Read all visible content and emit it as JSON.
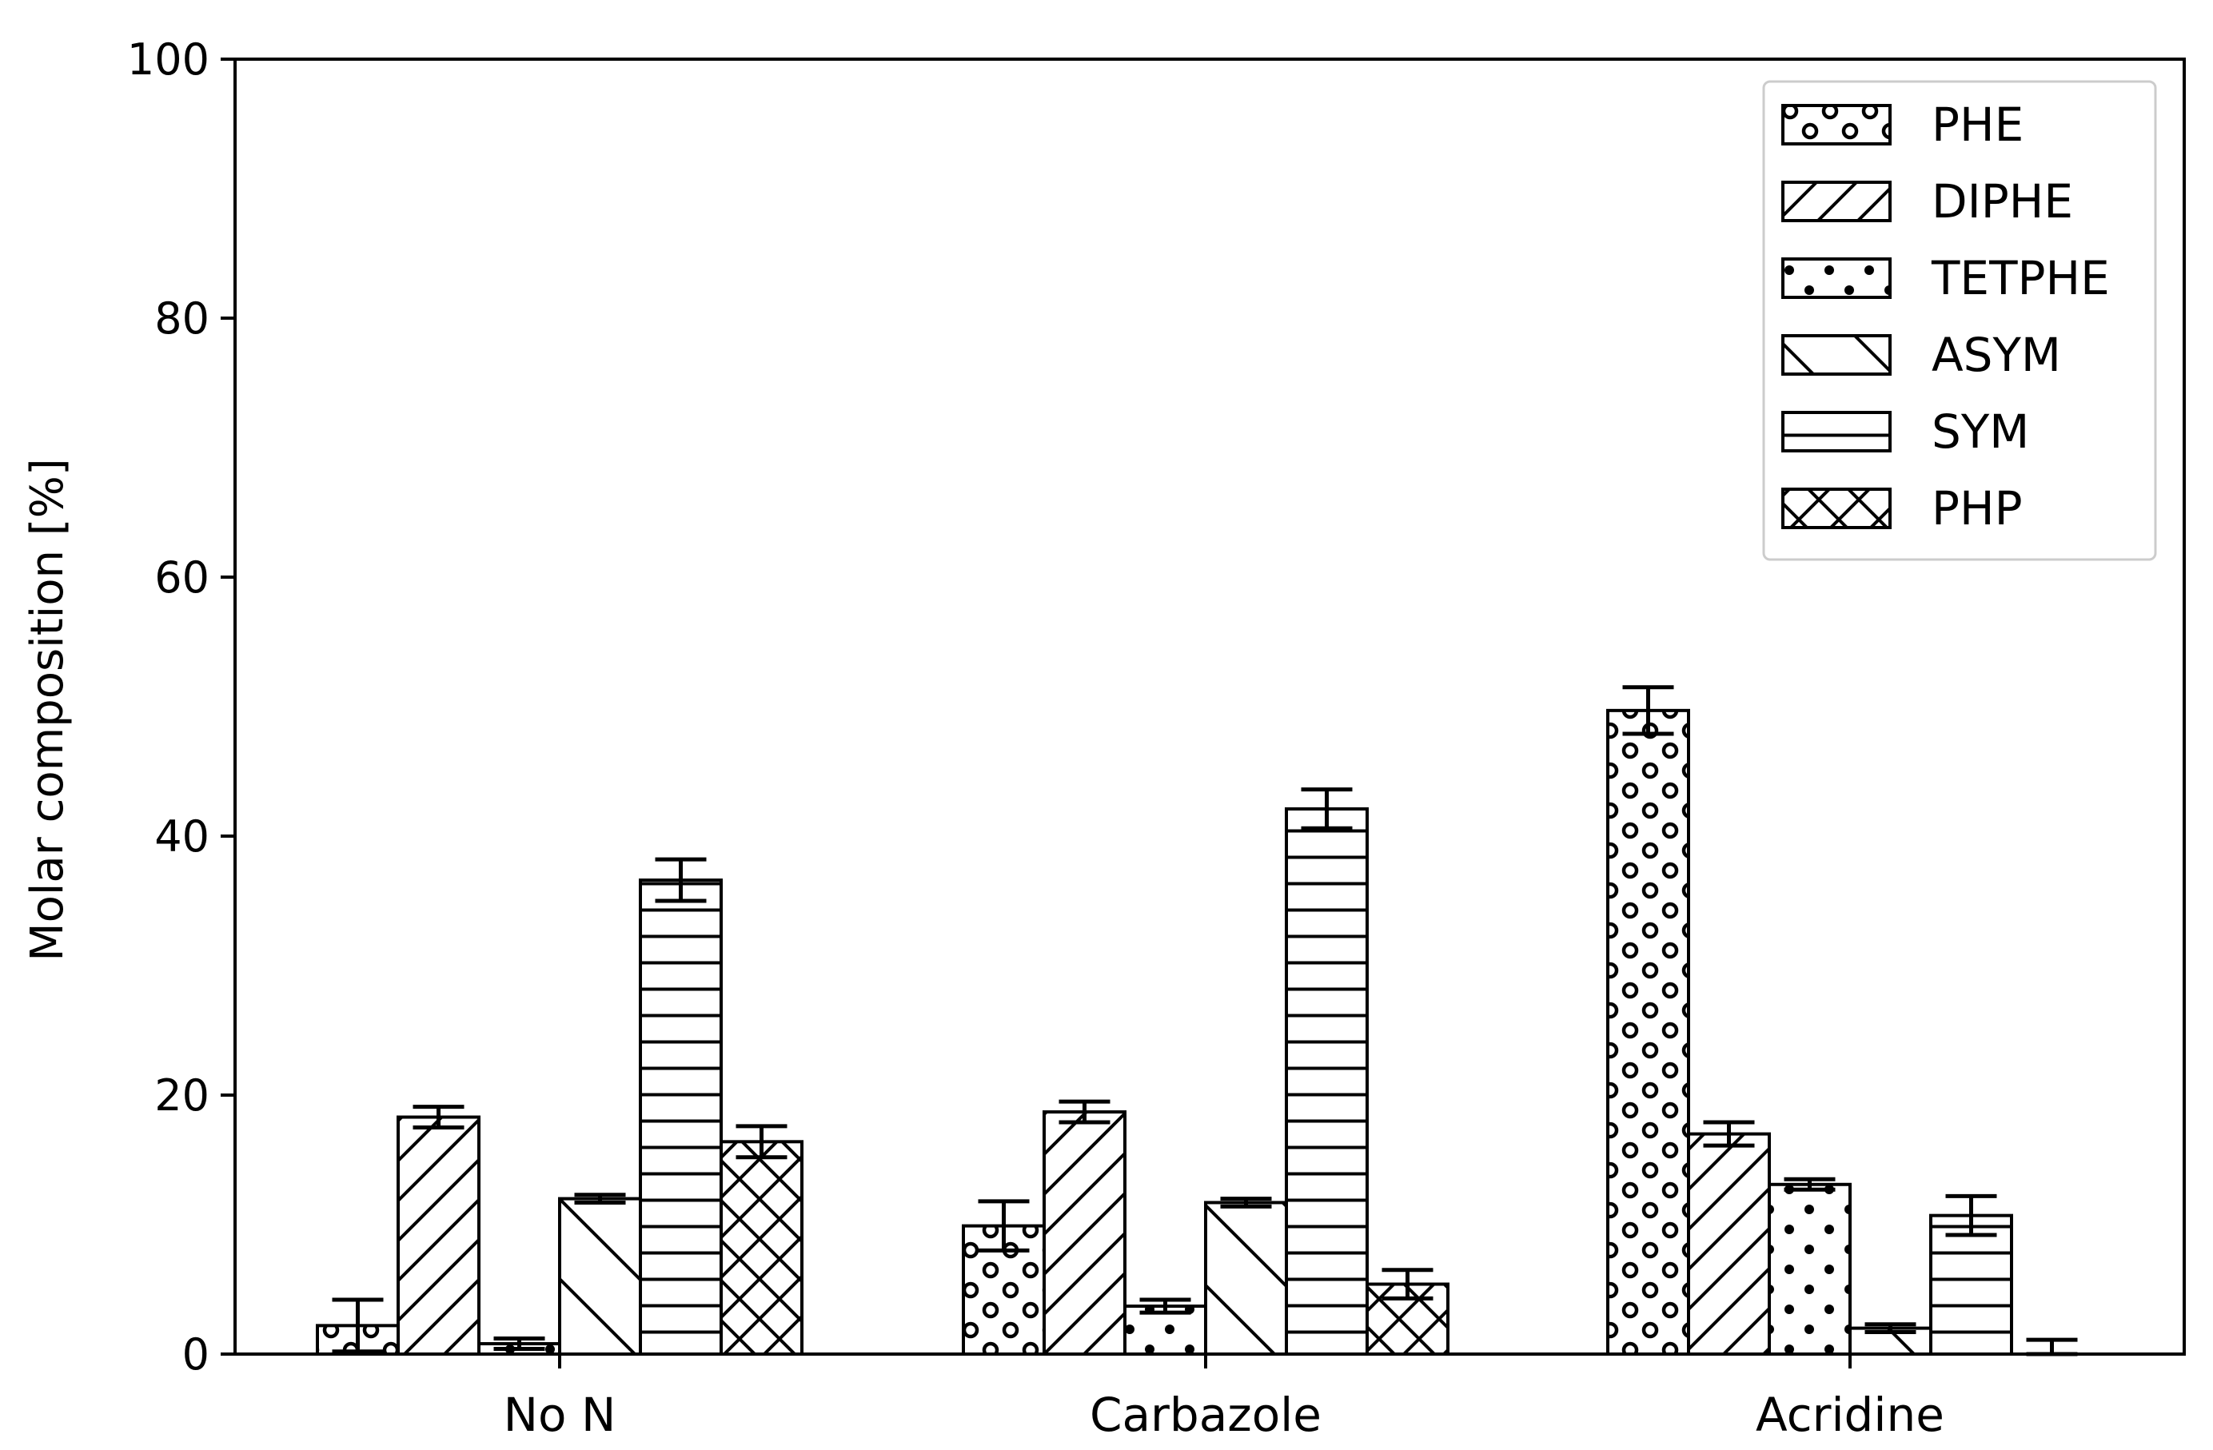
{
  "chart_data": {
    "type": "bar",
    "categories": [
      "No N",
      "Carbazole",
      "Acridine"
    ],
    "ylabel": "Molar composition [%]",
    "xlabel": "",
    "ylim": [
      0,
      100
    ],
    "yticks": [
      0,
      20,
      40,
      60,
      80,
      100
    ],
    "grid": false,
    "legend_position": "top-right",
    "error_bars": true,
    "series": [
      {
        "name": "PHE",
        "pattern": "large-circles",
        "values": [
          2.2,
          9.9,
          49.7
        ],
        "errors": [
          2.0,
          1.9,
          1.8
        ]
      },
      {
        "name": "DIPHE",
        "pattern": "forward-diagonal",
        "values": [
          18.3,
          18.7,
          17.0
        ],
        "errors": [
          0.8,
          0.8,
          0.9
        ]
      },
      {
        "name": "TETPHE",
        "pattern": "small-dots",
        "values": [
          0.8,
          3.7,
          13.1
        ],
        "errors": [
          0.4,
          0.5,
          0.4
        ]
      },
      {
        "name": "ASYM",
        "pattern": "backward-diagonal",
        "values": [
          12.0,
          11.7,
          2.0
        ],
        "errors": [
          0.3,
          0.3,
          0.3
        ]
      },
      {
        "name": "SYM",
        "pattern": "horizontal-lines",
        "values": [
          36.6,
          42.1,
          10.7
        ],
        "errors": [
          1.6,
          1.5,
          1.5
        ]
      },
      {
        "name": "PHP",
        "pattern": "crosshatch",
        "values": [
          16.4,
          5.4,
          0.0
        ],
        "errors": [
          1.2,
          1.1,
          1.1
        ]
      }
    ]
  }
}
